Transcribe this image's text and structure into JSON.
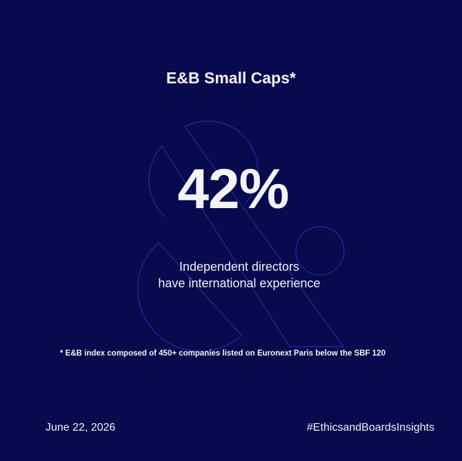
{
  "card": {
    "title": "E&B Small Caps*",
    "stat": "42%",
    "description": [
      "Independent directors",
      "have international experience"
    ],
    "footnote": "* E&B index composed of 450+ companies listed on Euronext Paris below the SBF 120",
    "date": "June 22, 2026",
    "hashtag": "#EthicsandBoardsInsights"
  }
}
